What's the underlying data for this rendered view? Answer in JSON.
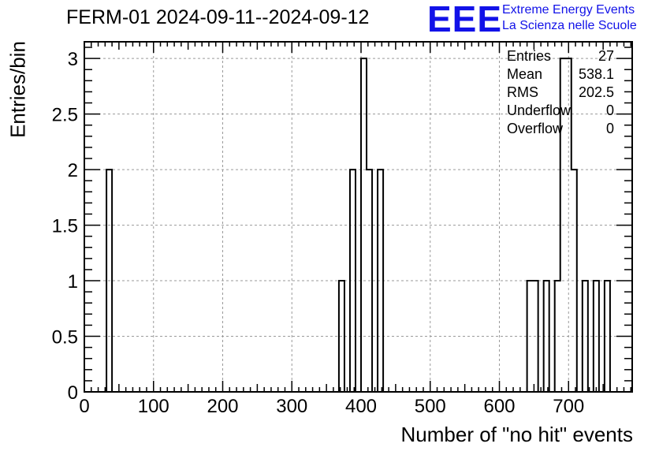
{
  "title": "FERM-01 2024-09-11--2024-09-12",
  "logo": {
    "mark": "EEE",
    "line1": "Extreme Energy Events",
    "line2": "La Scienza nelle Scuole",
    "color": "#1212e8"
  },
  "stats": [
    {
      "label": "Entries",
      "value": "27"
    },
    {
      "label": "Mean",
      "value": "538.1"
    },
    {
      "label": "RMS",
      "value": "202.5"
    },
    {
      "label": "Underflow",
      "value": "0"
    },
    {
      "label": "Overflow",
      "value": "0"
    }
  ],
  "chart_data": {
    "type": "bar",
    "histogram": true,
    "bin_width": 8,
    "xlabel": "Number of \"no hit\" events",
    "ylabel": "Entries/bin",
    "xlim": [
      0,
      792
    ],
    "ylim": [
      0,
      3.15
    ],
    "x_ticks": [
      "0",
      "100",
      "200",
      "300",
      "400",
      "500",
      "600",
      "700"
    ],
    "x_tick_values": [
      0,
      100,
      200,
      300,
      400,
      500,
      600,
      700
    ],
    "y_ticks": [
      "0",
      "0.5",
      "1",
      "1.5",
      "2",
      "2.5",
      "3"
    ],
    "y_tick_values": [
      0,
      0.5,
      1,
      1.5,
      2,
      2.5,
      3
    ],
    "grid": true,
    "bins": [
      {
        "x0": 28,
        "x1": 36,
        "count": 2
      },
      {
        "x0": 364,
        "x1": 372,
        "count": 1
      },
      {
        "x0": 380,
        "x1": 388,
        "count": 2
      },
      {
        "x0": 396,
        "x1": 404,
        "count": 3
      },
      {
        "x0": 404,
        "x1": 412,
        "count": 2
      },
      {
        "x0": 420,
        "x1": 428,
        "count": 2
      },
      {
        "x0": 640,
        "x1": 648,
        "count": 1
      },
      {
        "x0": 648,
        "x1": 656,
        "count": 1
      },
      {
        "x0": 664,
        "x1": 672,
        "count": 1
      },
      {
        "x0": 680,
        "x1": 688,
        "count": 1
      },
      {
        "x0": 688,
        "x1": 696,
        "count": 3
      },
      {
        "x0": 696,
        "x1": 704,
        "count": 3
      },
      {
        "x0": 704,
        "x1": 712,
        "count": 2
      },
      {
        "x0": 720,
        "x1": 728,
        "count": 1
      },
      {
        "x0": 736,
        "x1": 744,
        "count": 1
      },
      {
        "x0": 752,
        "x1": 760,
        "count": 1
      }
    ]
  }
}
